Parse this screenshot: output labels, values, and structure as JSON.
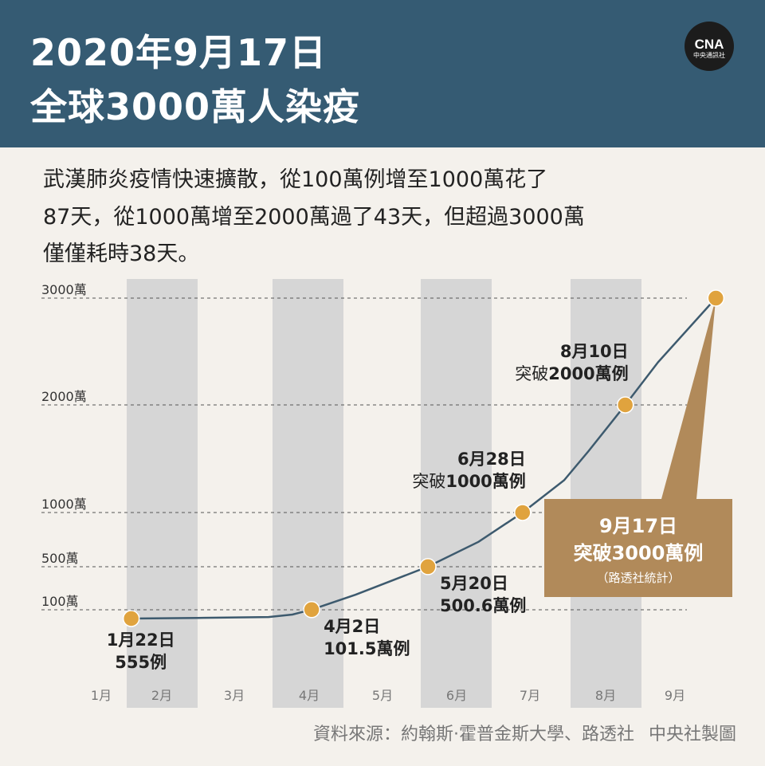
{
  "header": {
    "title_line1": "2020年9月17日",
    "title_line2": "全球3000萬人染疫",
    "logo_text": "CNA",
    "logo_sub": "中央通訊社",
    "background": "#355b73"
  },
  "description": {
    "line1": "武漢肺炎疫情快速擴散，從100萬例增至1000萬花了",
    "line2": "87天，從1000萬增至2000萬過了43天，但超過3000萬",
    "line3": "僅僅耗時38天。"
  },
  "chart_data": {
    "type": "line",
    "x_ticks": [
      "1月",
      "2月",
      "3月",
      "4月",
      "5月",
      "6月",
      "7月",
      "8月",
      "9月"
    ],
    "y_ticks": [
      {
        "value": 1000000,
        "label": "100萬"
      },
      {
        "value": 5000000,
        "label": "500萬"
      },
      {
        "value": 10000000,
        "label": "1000萬"
      },
      {
        "value": 20000000,
        "label": "2000萬"
      },
      {
        "value": 30000000,
        "label": "3000萬"
      }
    ],
    "ylim": [
      0,
      30000000
    ],
    "shaded_months": [
      "2月",
      "4月",
      "6月",
      "8月"
    ],
    "series": [
      {
        "line_color": "#3d5a6e",
        "points": [
          [
            "2020-01-22",
            555
          ],
          [
            "2020-02-15",
            70000
          ],
          [
            "2020-03-15",
            170000
          ],
          [
            "2020-03-25",
            450000
          ],
          [
            "2020-04-02",
            1015000
          ],
          [
            "2020-04-20",
            2400000
          ],
          [
            "2020-05-20",
            5006000
          ],
          [
            "2020-06-10",
            7300000
          ],
          [
            "2020-06-28",
            10000000
          ],
          [
            "2020-07-15",
            13000000
          ],
          [
            "2020-07-25",
            15700000
          ],
          [
            "2020-08-10",
            20000000
          ],
          [
            "2020-08-25",
            24000000
          ],
          [
            "2020-09-17",
            30000000
          ]
        ]
      }
    ],
    "annotations": [
      {
        "date": "2020-01-22",
        "value": 555,
        "line1": "1月22日",
        "line2": "555例",
        "position": "below"
      },
      {
        "date": "2020-04-02",
        "value": 1015000,
        "line1": "4月2日",
        "line2": "101.5萬例",
        "position": "below-right"
      },
      {
        "date": "2020-05-20",
        "value": 5006000,
        "line1": "5月20日",
        "line2": "500.6萬例",
        "position": "below-right"
      },
      {
        "date": "2020-06-28",
        "value": 10000000,
        "line1": "6月28日",
        "line2_prefix": "突破",
        "line2": "1000萬例",
        "position": "above-left"
      },
      {
        "date": "2020-08-10",
        "value": 20000000,
        "line1": "8月10日",
        "line2_prefix": "突破",
        "line2": "2000萬例",
        "position": "above-left"
      }
    ],
    "callout": {
      "date": "2020-09-17",
      "value": 30000000,
      "line1": "9月17日",
      "line2": "突破3000萬例",
      "line3": "（路透社統計）",
      "color": "#b18a5a"
    },
    "marker_color": "#e0a33e",
    "shade_color": "#d6d6d6"
  },
  "source": {
    "text": "資料來源：約翰斯·霍普金斯大學、路透社",
    "credit": "中央社製圖"
  }
}
